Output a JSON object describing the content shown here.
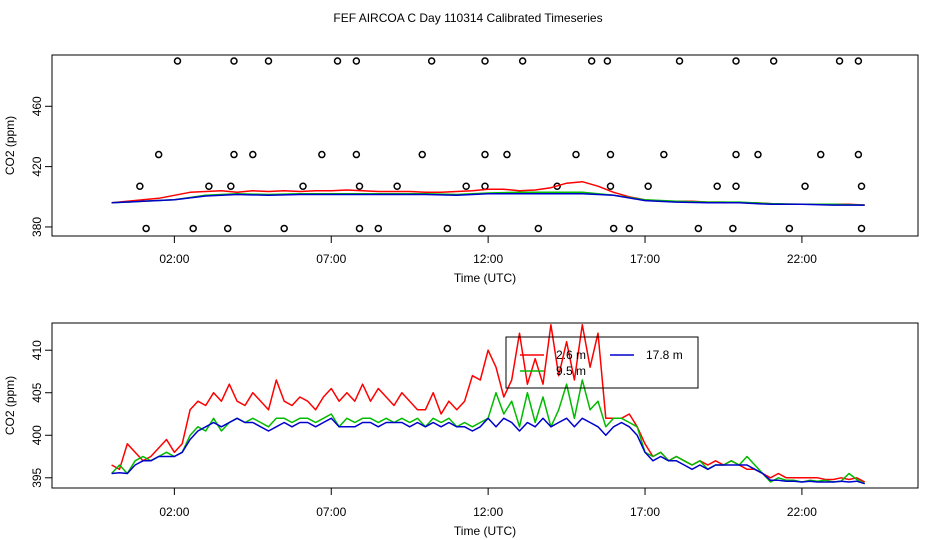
{
  "title": "FEF AIRCOA C  Day 110314  Calibrated Timeseries",
  "chart_data": [
    {
      "type": "line",
      "panel": "top",
      "xlabel": "Time (UTC)",
      "ylabel": "CO2 (ppm)",
      "xlim": [
        -1.9,
        25.7
      ],
      "ylim": [
        374,
        494
      ],
      "x_tick_values": [
        2,
        7,
        12,
        17,
        22
      ],
      "x_tick_labels": [
        "02:00",
        "07:00",
        "12:00",
        "17:00",
        "22:00"
      ],
      "y_tick_values": [
        380,
        420,
        460
      ],
      "y_tick_labels": [
        "380",
        "420",
        "460"
      ],
      "calibration_points": {
        "name": "calibration",
        "marker": "open-circle",
        "points": [
          [
            1.1,
            379
          ],
          [
            2.6,
            379
          ],
          [
            3.7,
            379
          ],
          [
            5.5,
            379
          ],
          [
            7.9,
            379
          ],
          [
            8.5,
            379
          ],
          [
            10.7,
            379
          ],
          [
            11.8,
            379
          ],
          [
            13.6,
            379
          ],
          [
            16.0,
            379
          ],
          [
            16.5,
            379
          ],
          [
            18.7,
            379
          ],
          [
            19.8,
            379
          ],
          [
            21.6,
            379
          ],
          [
            23.9,
            379
          ],
          [
            0.9,
            407
          ],
          [
            3.1,
            407
          ],
          [
            3.8,
            407
          ],
          [
            6.1,
            407
          ],
          [
            7.9,
            407
          ],
          [
            9.1,
            407
          ],
          [
            11.3,
            407
          ],
          [
            11.9,
            407
          ],
          [
            14.2,
            407
          ],
          [
            15.9,
            407
          ],
          [
            17.1,
            407
          ],
          [
            19.3,
            407
          ],
          [
            19.9,
            407
          ],
          [
            22.1,
            407
          ],
          [
            23.9,
            407
          ],
          [
            1.5,
            428
          ],
          [
            3.9,
            428
          ],
          [
            4.5,
            428
          ],
          [
            6.7,
            428
          ],
          [
            7.8,
            428
          ],
          [
            9.9,
            428
          ],
          [
            11.9,
            428
          ],
          [
            12.6,
            428
          ],
          [
            14.8,
            428
          ],
          [
            15.9,
            428
          ],
          [
            17.6,
            428
          ],
          [
            19.9,
            428
          ],
          [
            20.6,
            428
          ],
          [
            22.6,
            428
          ],
          [
            23.8,
            428
          ],
          [
            2.1,
            490
          ],
          [
            3.9,
            490
          ],
          [
            5.0,
            490
          ],
          [
            7.2,
            490
          ],
          [
            7.8,
            490
          ],
          [
            10.2,
            490
          ],
          [
            11.9,
            490
          ],
          [
            13.1,
            490
          ],
          [
            15.3,
            490
          ],
          [
            15.8,
            490
          ],
          [
            18.1,
            490
          ],
          [
            19.9,
            490
          ],
          [
            21.1,
            490
          ],
          [
            23.2,
            490
          ],
          [
            23.8,
            490
          ]
        ]
      },
      "series": [
        {
          "name": "2.6 m",
          "color": "#ff0000",
          "x": [
            0,
            0.5,
            1,
            1.5,
            2,
            2.5,
            3,
            3.5,
            4,
            4.5,
            5,
            5.5,
            6,
            6.5,
            7,
            7.5,
            8,
            8.5,
            9,
            9.5,
            10,
            10.5,
            11,
            11.5,
            12,
            12.5,
            13,
            13.5,
            14,
            14.5,
            15,
            15.5,
            16,
            16.5,
            17,
            17.5,
            18,
            18.5,
            19,
            19.5,
            20,
            20.5,
            21,
            21.5,
            22,
            22.5,
            23,
            23.5,
            24
          ],
          "y": [
            396,
            397,
            398,
            399,
            401,
            403,
            403.5,
            404,
            403,
            404,
            403.5,
            404,
            403.5,
            404,
            404,
            404.5,
            404,
            403.5,
            403.5,
            403.5,
            403,
            403,
            403.5,
            404,
            405,
            405,
            404,
            404.5,
            406,
            409,
            410,
            407,
            403,
            400,
            398,
            397,
            397,
            397,
            396.5,
            396.5,
            396,
            396,
            395.5,
            395,
            395,
            395,
            395,
            395,
            394.5
          ]
        },
        {
          "name": "9.5 m",
          "color": "#00bb00",
          "x": [
            0,
            1,
            2,
            3,
            4,
            5,
            6,
            7,
            8,
            9,
            10,
            11,
            12,
            13,
            14,
            15,
            16,
            17,
            18,
            19,
            20,
            21,
            22,
            23,
            24
          ],
          "y": [
            396,
            397,
            398,
            401,
            402,
            401.5,
            402,
            402,
            402,
            402,
            402,
            401.5,
            402.5,
            403,
            403,
            403,
            401,
            398,
            397,
            396.5,
            396.5,
            395.5,
            395,
            395,
            394.5
          ]
        },
        {
          "name": "17.8 m",
          "color": "#0000cc",
          "x": [
            0,
            1,
            2,
            3,
            4,
            5,
            6,
            7,
            8,
            9,
            10,
            11,
            12,
            13,
            14,
            15,
            16,
            17,
            18,
            19,
            20,
            21,
            22,
            23,
            24
          ],
          "y": [
            396,
            397,
            398,
            400.5,
            401.5,
            401,
            401.5,
            401.5,
            401.5,
            401.5,
            401.5,
            401,
            402,
            402,
            402,
            402,
            401,
            397.5,
            396.5,
            396,
            396,
            395,
            395,
            394.5,
            394.5
          ]
        }
      ]
    },
    {
      "type": "line",
      "panel": "bottom",
      "xlabel": "Time (UTC)",
      "ylabel": "CO2 (ppm)",
      "xlim": [
        -1.9,
        25.7
      ],
      "ylim": [
        393.8,
        413.2
      ],
      "x_tick_values": [
        2,
        7,
        12,
        17,
        22
      ],
      "x_tick_labels": [
        "02:00",
        "07:00",
        "12:00",
        "17:00",
        "22:00"
      ],
      "y_tick_values": [
        395,
        400,
        405,
        410
      ],
      "y_tick_labels": [
        "395",
        "400",
        "405",
        "410"
      ],
      "legend": {
        "placement": "top-center",
        "entries": [
          {
            "label": "2.6 m",
            "color": "#ff0000"
          },
          {
            "label": "9.5 m",
            "color": "#00bb00"
          },
          {
            "label": "17.8 m",
            "color": "#0000cc"
          }
        ]
      },
      "series": [
        {
          "name": "2.6 m",
          "color": "#ff0000",
          "x": [
            0,
            0.25,
            0.5,
            0.75,
            1,
            1.25,
            1.5,
            1.75,
            2,
            2.25,
            2.5,
            2.75,
            3,
            3.25,
            3.5,
            3.75,
            4,
            4.25,
            4.5,
            4.75,
            5,
            5.25,
            5.5,
            5.75,
            6,
            6.25,
            6.5,
            6.75,
            7,
            7.25,
            7.5,
            7.75,
            8,
            8.25,
            8.5,
            8.75,
            9,
            9.25,
            9.5,
            9.75,
            10,
            10.25,
            10.5,
            10.75,
            11,
            11.25,
            11.5,
            11.75,
            12,
            12.25,
            12.5,
            12.75,
            13,
            13.25,
            13.5,
            13.75,
            14,
            14.25,
            14.5,
            14.75,
            15,
            15.25,
            15.5,
            15.75,
            16,
            16.25,
            16.5,
            16.75,
            17,
            17.25,
            17.5,
            17.75,
            18,
            18.25,
            18.5,
            18.75,
            19,
            19.25,
            19.5,
            19.75,
            20,
            20.25,
            20.5,
            20.75,
            21,
            21.25,
            21.5,
            21.75,
            22,
            22.25,
            22.5,
            22.75,
            23,
            23.25,
            23.5,
            23.75,
            24
          ],
          "y": [
            396.5,
            396,
            399,
            398,
            397,
            397.5,
            398.5,
            399.5,
            398,
            399,
            403,
            404,
            403.5,
            405,
            404,
            406,
            404,
            403.5,
            405,
            404,
            403,
            406.5,
            404,
            403.5,
            404.5,
            404,
            403,
            404.5,
            405.5,
            404,
            405,
            404,
            406,
            404,
            405.5,
            404.5,
            403.5,
            405,
            404,
            403,
            403,
            405,
            402.5,
            404,
            403,
            404,
            407,
            406.5,
            410,
            408,
            404.5,
            406.5,
            412,
            406,
            409,
            406,
            413,
            407,
            411,
            406.5,
            413,
            408,
            412,
            402,
            402,
            402,
            402.5,
            401,
            399,
            397.5,
            398,
            397,
            397.5,
            397,
            396.5,
            397,
            396.5,
            397,
            396.5,
            397,
            396.5,
            396,
            396,
            395.5,
            395,
            395.5,
            395,
            395,
            395,
            395,
            395,
            394.8,
            394.8,
            395,
            394.8,
            395,
            394.5
          ]
        },
        {
          "name": "9.5 m",
          "color": "#00bb00",
          "x": [
            0,
            0.25,
            0.5,
            0.75,
            1,
            1.25,
            1.5,
            1.75,
            2,
            2.25,
            2.5,
            2.75,
            3,
            3.25,
            3.5,
            3.75,
            4,
            4.25,
            4.5,
            4.75,
            5,
            5.25,
            5.5,
            5.75,
            6,
            6.25,
            6.5,
            6.75,
            7,
            7.25,
            7.5,
            7.75,
            8,
            8.25,
            8.5,
            8.75,
            9,
            9.25,
            9.5,
            9.75,
            10,
            10.25,
            10.5,
            10.75,
            11,
            11.25,
            11.5,
            11.75,
            12,
            12.25,
            12.5,
            12.75,
            13,
            13.25,
            13.5,
            13.75,
            14,
            14.25,
            14.5,
            14.75,
            15,
            15.25,
            15.5,
            15.75,
            16,
            16.25,
            16.5,
            16.75,
            17,
            17.25,
            17.5,
            17.75,
            18,
            18.25,
            18.5,
            18.75,
            19,
            19.25,
            19.5,
            19.75,
            20,
            20.25,
            20.5,
            20.75,
            21,
            21.25,
            21.5,
            21.75,
            22,
            22.25,
            22.5,
            22.75,
            23,
            23.25,
            23.5,
            23.75,
            24
          ],
          "y": [
            395.5,
            396.5,
            395.5,
            397,
            397.5,
            397,
            397.5,
            398,
            397.5,
            398,
            400,
            401,
            400.5,
            402,
            400.5,
            401.5,
            402,
            401.5,
            402,
            401.5,
            401,
            402,
            402,
            401.5,
            402,
            402,
            401.5,
            402,
            402.5,
            401,
            402,
            401.5,
            402,
            402,
            401.5,
            402,
            401.5,
            402,
            401.5,
            402,
            401,
            402,
            401.5,
            402,
            401,
            401.5,
            401,
            401.5,
            402,
            405,
            402.5,
            404,
            401,
            405,
            401.5,
            404.5,
            401,
            403,
            406,
            402,
            406.5,
            403,
            404,
            401,
            402,
            402,
            401.5,
            401,
            398,
            397.5,
            398,
            397,
            397.5,
            397,
            396.5,
            397,
            396,
            396.5,
            396.5,
            397,
            396.5,
            397.5,
            396.5,
            395.5,
            394.5,
            395,
            394.7,
            394.7,
            394.5,
            394.7,
            394.6,
            394.7,
            394.5,
            394.6,
            395.5,
            394.8,
            394.3
          ]
        },
        {
          "name": "17.8 m",
          "color": "#0000cc",
          "x": [
            0,
            0.25,
            0.5,
            0.75,
            1,
            1.25,
            1.5,
            1.75,
            2,
            2.25,
            2.5,
            2.75,
            3,
            3.25,
            3.5,
            3.75,
            4,
            4.25,
            4.5,
            4.75,
            5,
            5.25,
            5.5,
            5.75,
            6,
            6.25,
            6.5,
            6.75,
            7,
            7.25,
            7.5,
            7.75,
            8,
            8.25,
            8.5,
            8.75,
            9,
            9.25,
            9.5,
            9.75,
            10,
            10.25,
            10.5,
            10.75,
            11,
            11.25,
            11.5,
            11.75,
            12,
            12.25,
            12.5,
            12.75,
            13,
            13.25,
            13.5,
            13.75,
            14,
            14.25,
            14.5,
            14.75,
            15,
            15.25,
            15.5,
            15.75,
            16,
            16.25,
            16.5,
            16.75,
            17,
            17.25,
            17.5,
            17.75,
            18,
            18.25,
            18.5,
            18.75,
            19,
            19.25,
            19.5,
            19.75,
            20,
            20.25,
            20.5,
            20.75,
            21,
            21.25,
            21.5,
            21.75,
            22,
            22.25,
            22.5,
            22.75,
            23,
            23.25,
            23.5,
            23.75,
            24
          ],
          "y": [
            395.5,
            395.6,
            395.5,
            396.5,
            397,
            397,
            397.5,
            397.5,
            397.5,
            398,
            399.5,
            400.5,
            401,
            401.5,
            401,
            401.5,
            402,
            401.5,
            401.5,
            401,
            400.5,
            401,
            401.5,
            401,
            401.5,
            401.5,
            401,
            401.5,
            402,
            401,
            401,
            401,
            401.5,
            401.5,
            401,
            401.5,
            401.5,
            401.5,
            401,
            401.5,
            401,
            401.5,
            401,
            401.5,
            401,
            401,
            400.5,
            401,
            402,
            401,
            402,
            401.5,
            400.5,
            401.5,
            401,
            402,
            401,
            401.5,
            402,
            401,
            402,
            401.5,
            401,
            400,
            401,
            401.5,
            401,
            400,
            398,
            397,
            397.5,
            397,
            397,
            396.5,
            396,
            396.5,
            396,
            396.5,
            396.5,
            396.5,
            396.5,
            396.5,
            396,
            395.5,
            394.7,
            394.7,
            394.6,
            394.6,
            394.5,
            394.6,
            394.5,
            394.5,
            394.5,
            394.6,
            394.5,
            394.6,
            394.3
          ]
        }
      ]
    }
  ]
}
